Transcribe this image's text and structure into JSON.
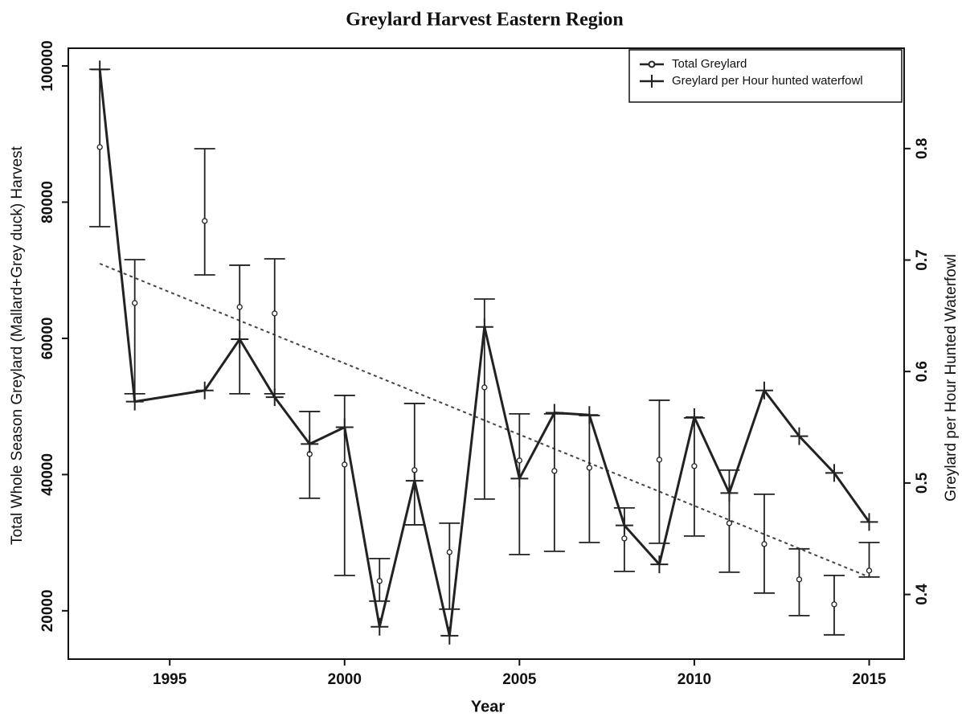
{
  "chart_data": {
    "type": "line",
    "title": "Greylard Harvest Eastern Region",
    "xlabel": "Year",
    "ylabel": "Total Whole Season Greylard (Mallard+Grey duck) Harvest",
    "y2label": "Greylard per Hour Hunted Waterfowl",
    "x": [
      1993,
      1994,
      1996,
      1997,
      1998,
      1999,
      2000,
      2001,
      2002,
      2003,
      2004,
      2005,
      2006,
      2007,
      2008,
      2009,
      2010,
      2011,
      2012,
      2013,
      2014,
      2015
    ],
    "series": [
      {
        "name": "Total Greylard",
        "color": "#222222",
        "marker": "circle",
        "values": [
          88080,
          65190,
          77230,
          64600,
          63660,
          43010,
          41470,
          24370,
          40650,
          28610,
          52800,
          42060,
          40530,
          41000,
          30620,
          42180,
          41240,
          32860,
          29790,
          24600,
          20940,
          25900
        ],
        "lower": [
          76400,
          51860,
          69320,
          51860,
          51860,
          36520,
          25190,
          21420,
          32620,
          20240,
          36400,
          28260,
          28730,
          30030,
          25780,
          29910,
          30970,
          25660,
          22600,
          19290,
          16460,
          24960
        ],
        "upper": [
          99500,
          71560,
          87850,
          70740,
          71680,
          49260,
          51620,
          27670,
          50440,
          32860,
          65780,
          48910,
          48910,
          48670,
          35100,
          50910,
          48320,
          40650,
          37110,
          29090,
          25190,
          30030
        ]
      },
      {
        "name": "Greylard per Hour hunted waterfowl",
        "color": "#222222",
        "marker": "plus",
        "axis": "y2",
        "values": [
          0.871,
          0.573,
          0.583,
          0.629,
          0.577,
          0.535,
          0.55,
          0.371,
          0.502,
          0.363,
          0.64,
          0.504,
          0.563,
          0.561,
          0.462,
          0.427,
          0.559,
          0.491,
          0.583,
          0.542,
          0.509,
          0.465
        ]
      }
    ],
    "trend": {
      "x": [
        1993,
        2015
      ],
      "values": [
        70970,
        24960
      ],
      "color": "#444444"
    },
    "xlim": [
      1992.1,
      2016
    ],
    "xticks": [
      1995,
      2000,
      2005,
      2010,
      2015
    ],
    "ylim": [
      12900,
      102600
    ],
    "yticks": [
      20000,
      40000,
      60000,
      80000,
      100000
    ],
    "y2lim": [
      0.342,
      0.89
    ],
    "y2ticks": [
      0.4,
      0.5,
      0.6,
      0.7,
      0.8
    ],
    "legend": "upper right"
  }
}
